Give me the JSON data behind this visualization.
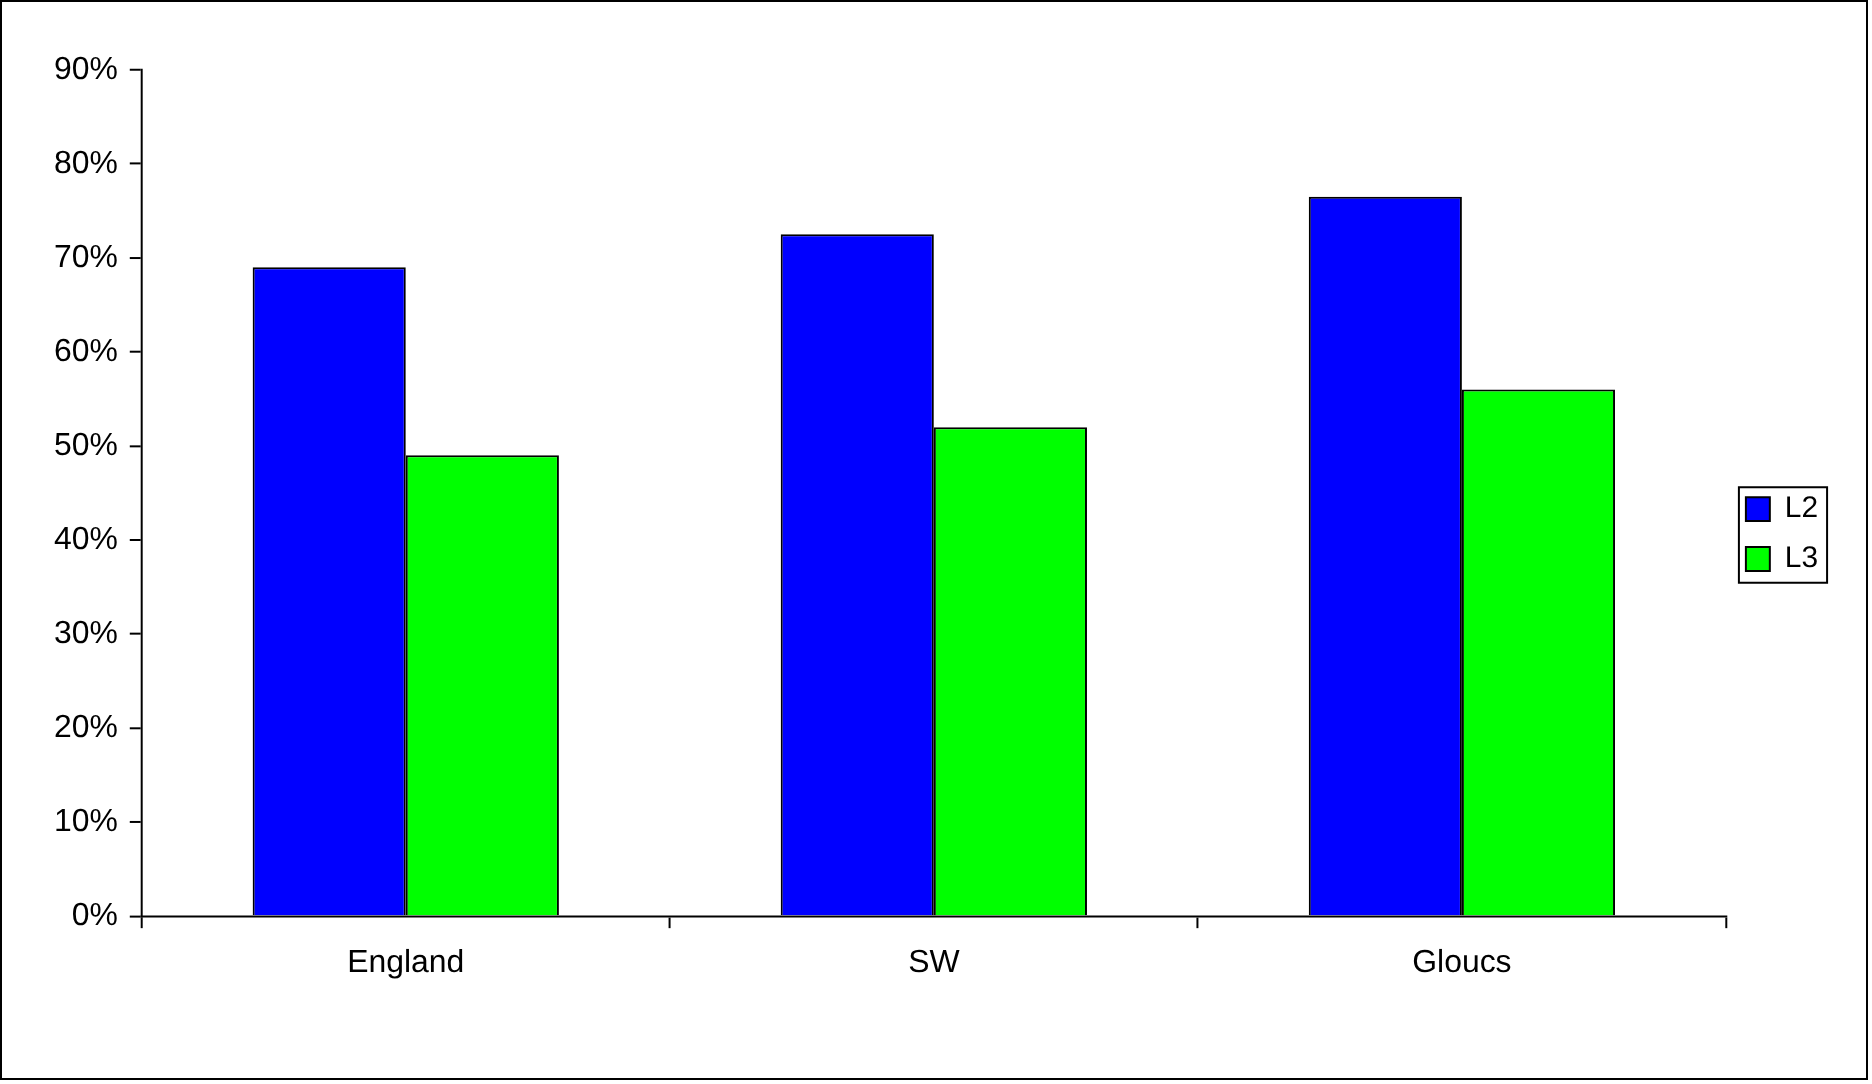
{
  "chart_data": {
    "type": "bar",
    "categories": [
      "England",
      "SW",
      "Gloucs"
    ],
    "series": [
      {
        "name": "L2",
        "color": "#0000ff",
        "values": [
          69,
          72.5,
          76.5
        ]
      },
      {
        "name": "L3",
        "color": "#00ff00",
        "values": [
          49,
          52,
          56
        ]
      }
    ],
    "ylim": [
      0,
      90
    ],
    "yticks": [
      {
        "value": 0,
        "label": "0%"
      },
      {
        "value": 10,
        "label": "10%"
      },
      {
        "value": 20,
        "label": "20%"
      },
      {
        "value": 30,
        "label": "30%"
      },
      {
        "value": 40,
        "label": "40%"
      },
      {
        "value": 50,
        "label": "50%"
      },
      {
        "value": 60,
        "label": "60%"
      },
      {
        "value": 70,
        "label": "70%"
      },
      {
        "value": 80,
        "label": "80%"
      },
      {
        "value": 90,
        "label": "90%"
      }
    ],
    "grid": false,
    "legend": "right"
  }
}
